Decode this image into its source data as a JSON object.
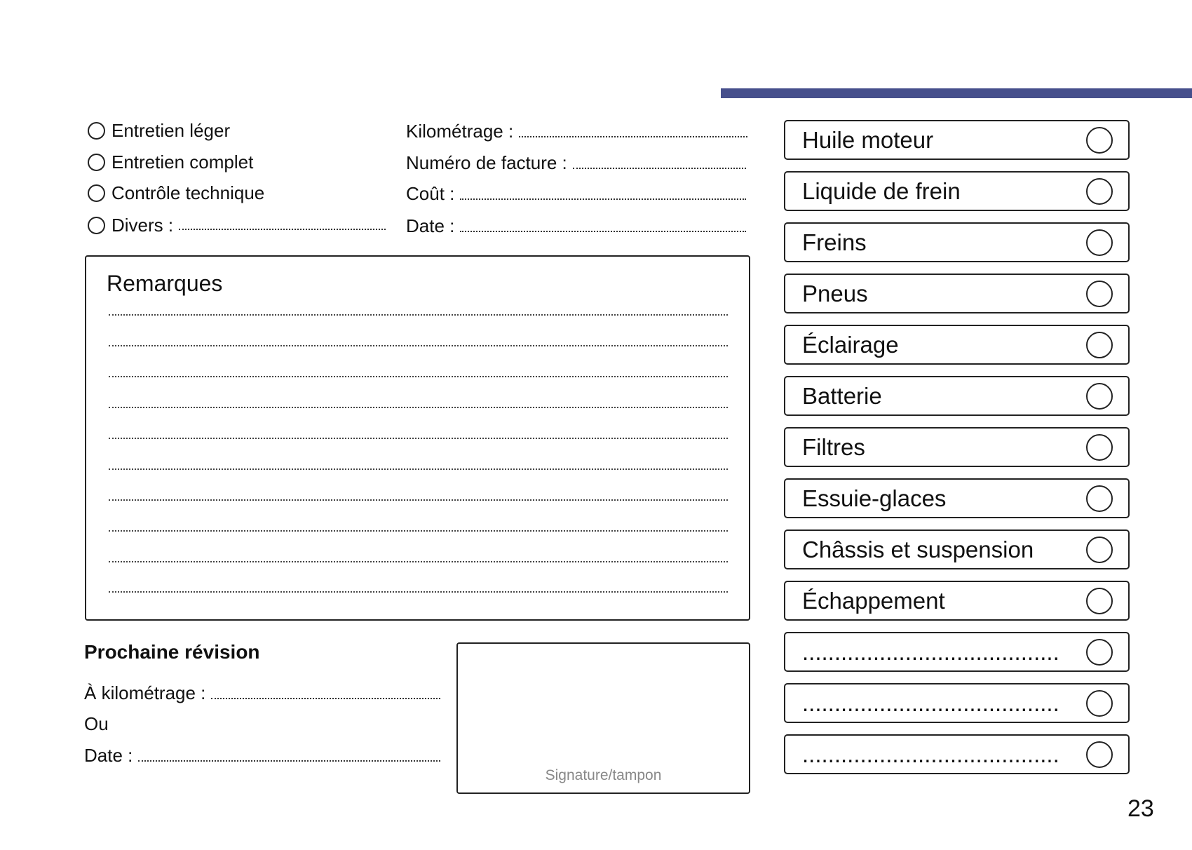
{
  "colors": {
    "accent_bar": "#464f8c"
  },
  "service_types": [
    {
      "label": "Entretien léger"
    },
    {
      "label": "Entretien complet"
    },
    {
      "label": "Contrôle technique"
    },
    {
      "label": "Divers :"
    }
  ],
  "fields": [
    {
      "label": "Kilométrage :"
    },
    {
      "label": "Numéro de facture :"
    },
    {
      "label": "Coût :"
    },
    {
      "label": "Date :"
    }
  ],
  "remarks": {
    "title": "Remarques"
  },
  "next_service": {
    "title": "Prochaine révision",
    "km_label": "À kilométrage :",
    "or_label": "Ou",
    "date_label": "Date :"
  },
  "signature": {
    "label": "Signature/tampon"
  },
  "checklist": [
    {
      "label": "Huile moteur"
    },
    {
      "label": "Liquide de frein"
    },
    {
      "label": "Freins"
    },
    {
      "label": "Pneus"
    },
    {
      "label": "Éclairage"
    },
    {
      "label": "Batterie"
    },
    {
      "label": "Filtres"
    },
    {
      "label": "Essuie-glaces"
    },
    {
      "label": "Châssis et suspension"
    },
    {
      "label": "Échappement"
    },
    {
      "label": "........................................"
    },
    {
      "label": "........................................"
    },
    {
      "label": "........................................"
    }
  ],
  "page_number": "23"
}
